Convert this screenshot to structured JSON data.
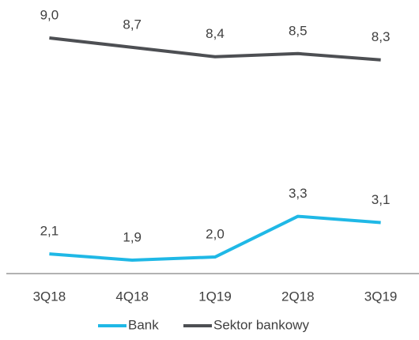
{
  "chart_data": {
    "type": "line",
    "categories": [
      "3Q18",
      "4Q18",
      "1Q19",
      "2Q18",
      "3Q19"
    ],
    "series": [
      {
        "name": "Bank",
        "color": "#1fb8e6",
        "values": [
          2.1,
          1.9,
          2.0,
          3.3,
          3.1
        ],
        "value_labels": [
          "2,1",
          "1,9",
          "2,0",
          "3,3",
          "3,1"
        ]
      },
      {
        "name": "Sektor bankowy",
        "color": "#4d4f53",
        "values": [
          9.0,
          8.7,
          8.4,
          8.5,
          8.3
        ],
        "value_labels": [
          "9,0",
          "8,7",
          "8,4",
          "8,5",
          "8,3"
        ]
      }
    ],
    "legend": "bottom"
  }
}
